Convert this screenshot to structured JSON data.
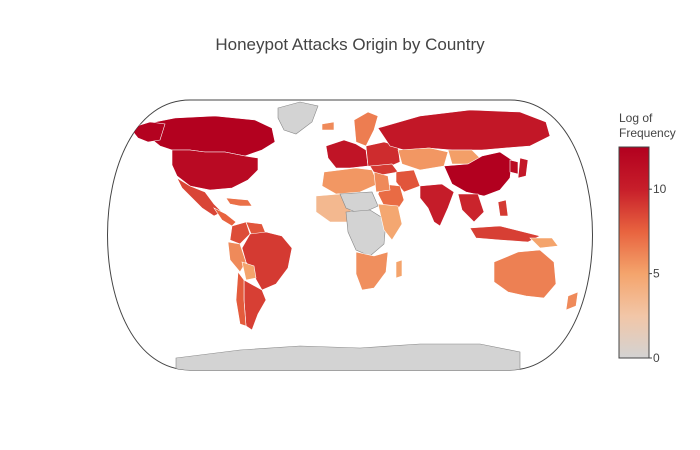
{
  "title": "Honeypot Attacks Origin by Country",
  "colorbar": {
    "title_line1": "Log of",
    "title_line2": "Frequency",
    "ticks": [
      {
        "value": 0,
        "label": "0"
      },
      {
        "value": 5,
        "label": "5"
      },
      {
        "value": 10,
        "label": "10"
      }
    ],
    "range": [
      0,
      12.5
    ],
    "stops": [
      "#d3d3d3",
      "#f2c6a7",
      "#f4a46c",
      "#e8633f",
      "#c71e2a",
      "#b2001f"
    ]
  },
  "map": {
    "projection": "natural-earth",
    "no_data_color": "#d3d3d3",
    "regions": [
      {
        "name": "Canada",
        "value": 12.4
      },
      {
        "name": "Alaska (USA)",
        "value": 12.3
      },
      {
        "name": "Greenland",
        "value": null
      },
      {
        "name": "United States",
        "value": 11.7
      },
      {
        "name": "Mexico",
        "value": 8.6
      },
      {
        "name": "Central America",
        "value": 7.5
      },
      {
        "name": "Caribbean",
        "value": 7.0
      },
      {
        "name": "Colombia",
        "value": 8.3
      },
      {
        "name": "Venezuela",
        "value": 8.0
      },
      {
        "name": "Peru",
        "value": 6.0
      },
      {
        "name": "Brazil",
        "value": 9.0
      },
      {
        "name": "Bolivia",
        "value": 5.0
      },
      {
        "name": "Argentina",
        "value": 8.8
      },
      {
        "name": "Chile",
        "value": 7.8
      },
      {
        "name": "Iceland",
        "value": 6.0
      },
      {
        "name": "Scandinavia",
        "value": 6.5
      },
      {
        "name": "Western Europe",
        "value": 10.8
      },
      {
        "name": "Eastern Europe",
        "value": 9.5
      },
      {
        "name": "Russia",
        "value": 10.6
      },
      {
        "name": "Kazakhstan",
        "value": 5.5
      },
      {
        "name": "Mongolia",
        "value": 5.2
      },
      {
        "name": "China",
        "value": 12.6
      },
      {
        "name": "Korea",
        "value": 11.5
      },
      {
        "name": "Japan",
        "value": 10.5
      },
      {
        "name": "Turkey",
        "value": 9.0
      },
      {
        "name": "Iran",
        "value": 8.0
      },
      {
        "name": "Saudi Arabia",
        "value": 7.2
      },
      {
        "name": "India",
        "value": 10.2
      },
      {
        "name": "Southeast Asia",
        "value": 9.8
      },
      {
        "name": "Indonesia",
        "value": 8.8
      },
      {
        "name": "Philippines",
        "value": 9.0
      },
      {
        "name": "Australia",
        "value": 6.4
      },
      {
        "name": "New Zealand",
        "value": 6.0
      },
      {
        "name": "Papua New Guinea",
        "value": 5.0
      },
      {
        "name": "North Africa",
        "value": 5.5
      },
      {
        "name": "West Africa",
        "value": 3.5
      },
      {
        "name": "Sahel",
        "value": null
      },
      {
        "name": "Egypt",
        "value": 6.0
      },
      {
        "name": "Central Africa",
        "value": null
      },
      {
        "name": "East Africa",
        "value": 4.8
      },
      {
        "name": "Southern Africa",
        "value": 5.8
      },
      {
        "name": "Madagascar",
        "value": 5.0
      },
      {
        "name": "Antarctica",
        "value": null
      }
    ]
  }
}
